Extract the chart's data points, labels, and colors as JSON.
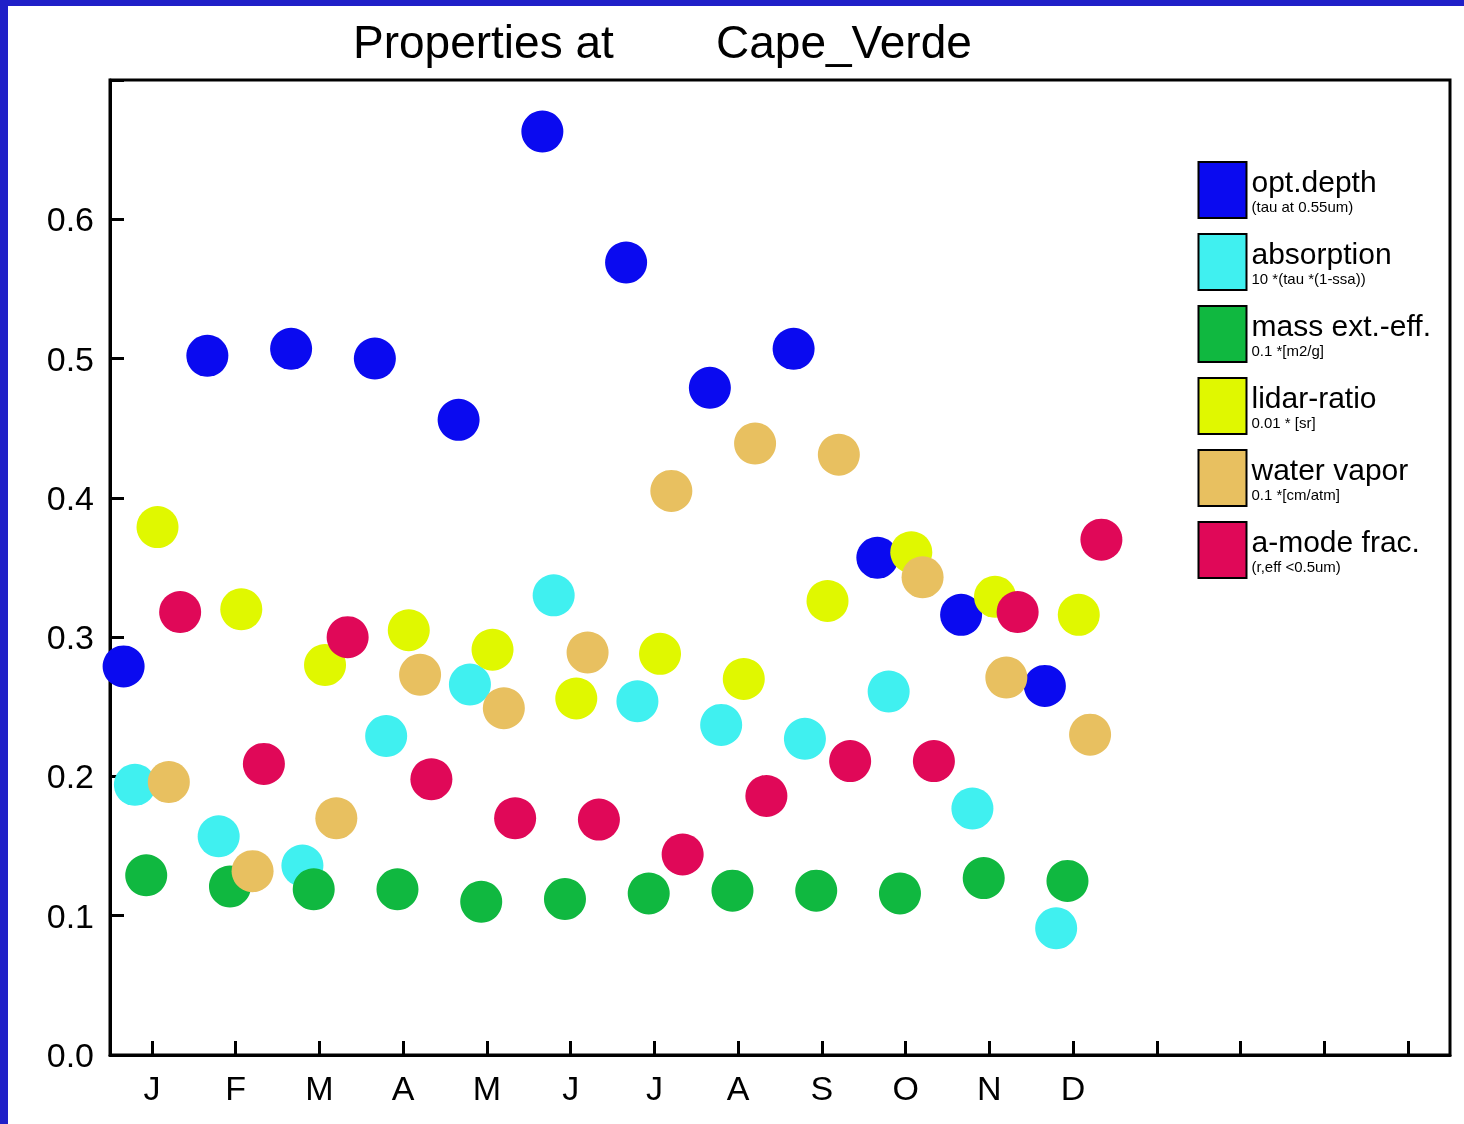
{
  "chart_data": {
    "type": "scatter",
    "title": "Properties at        Cape_Verde",
    "categories": [
      "J",
      "F",
      "M",
      "A",
      "M",
      "J",
      "J",
      "A",
      "S",
      "O",
      "N",
      "D",
      null,
      null,
      null,
      null
    ],
    "ylim": [
      0,
      0.7
    ],
    "yticks": [
      {
        "value": 0,
        "label": "0.0"
      },
      0.1,
      0.2,
      0.3,
      0.4,
      0.5,
      0.6,
      {
        "value": 0.7,
        "label": null
      }
    ],
    "marker": "circle",
    "grid": false,
    "legend": "top right",
    "series": [
      {
        "name": "opt.depth\n(tau at 0.55um)",
        "color": "#0a0af0",
        "values": [
          0.279,
          0.502,
          0.507,
          0.5,
          0.456,
          0.663,
          0.569,
          0.479,
          0.507,
          0.357,
          0.316,
          0.265,
          null,
          null,
          null,
          null
        ]
      },
      {
        "name": "absorption\n10 *(tau *(1-ssa))",
        "color": "#40f0f0",
        "values": [
          0.194,
          0.157,
          0.136,
          0.229,
          0.266,
          0.33,
          0.254,
          0.237,
          0.227,
          0.261,
          0.177,
          0.091,
          null,
          null,
          null,
          null
        ]
      },
      {
        "name": "mass ext.-eff.\n0.1 *[m2/g]",
        "color": "#10b840",
        "values": [
          0.129,
          0.121,
          0.119,
          0.119,
          0.11,
          0.112,
          0.116,
          0.118,
          0.118,
          0.116,
          0.127,
          0.125,
          null,
          null,
          null,
          null
        ]
      },
      {
        "name": "lidar-ratio\n0.01 * [sr]",
        "color": "#e0f800",
        "values": [
          0.379,
          0.32,
          0.28,
          0.305,
          0.291,
          0.256,
          0.288,
          0.27,
          0.326,
          0.361,
          0.329,
          0.316,
          null,
          null,
          null,
          null
        ]
      },
      {
        "name": "water vapor\n0.1 *[cm/atm]",
        "color": "#e8c060",
        "values": [
          0.196,
          0.132,
          0.17,
          0.273,
          0.249,
          0.289,
          0.405,
          0.439,
          0.431,
          0.343,
          0.271,
          0.23,
          null,
          null,
          null,
          null
        ]
      },
      {
        "name": "a-mode frac.\n(r,eff <0.5um)",
        "color": "#e00858",
        "values": [
          0.318,
          0.209,
          0.3,
          0.198,
          0.17,
          0.169,
          0.144,
          0.186,
          0.211,
          0.211,
          0.318,
          0.37,
          null,
          null,
          null,
          null
        ]
      }
    ]
  }
}
